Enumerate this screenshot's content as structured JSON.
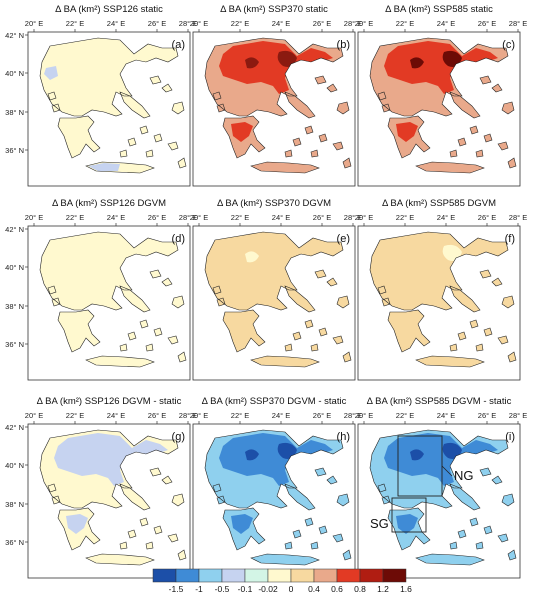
{
  "lon_ticks": [
    "20° E",
    "22° E",
    "24° E",
    "26° E",
    "28° E"
  ],
  "lat_ticks": [
    "42° N",
    "40° N",
    "38° N",
    "36° N"
  ],
  "panels": [
    {
      "title": "Δ BA (km²) SSP126 static",
      "label": "(a)",
      "base": "#fff9cf",
      "blobs": [
        {
          "c": "#c6d3f0",
          "shape": "nwbit"
        },
        {
          "c": "#c6d3f0",
          "shape": "crete"
        }
      ]
    },
    {
      "title": "Δ BA (km²) SSP370 static",
      "label": "(b)",
      "base": "#e9a98b",
      "blobs": [
        {
          "c": "#e23a24",
          "shape": "north"
        },
        {
          "c": "#8b1a10",
          "shape": "spot1"
        },
        {
          "c": "#8b1a10",
          "shape": "spot2"
        },
        {
          "c": "#e23a24",
          "shape": "pelo"
        }
      ]
    },
    {
      "title": "Δ BA (km²) SSP585 static",
      "label": "(c)",
      "base": "#e9a98b",
      "blobs": [
        {
          "c": "#e23a24",
          "shape": "north"
        },
        {
          "c": "#6d0b06",
          "shape": "spot1"
        },
        {
          "c": "#6d0b06",
          "shape": "spot2"
        },
        {
          "c": "#e23a24",
          "shape": "pelo"
        }
      ]
    },
    {
      "title": "Δ BA (km²) SSP126 DGVM",
      "label": "(d)",
      "base": "#fff9cf",
      "blobs": []
    },
    {
      "title": "Δ BA (km²) SSP370 DGVM",
      "label": "(e)",
      "base": "#f7d9a0",
      "blobs": [
        {
          "c": "#fff9cf",
          "shape": "spot1"
        }
      ]
    },
    {
      "title": "Δ BA (km²) SSP585 DGVM",
      "label": "(f)",
      "base": "#f7d9a0",
      "blobs": [
        {
          "c": "#fff9cf",
          "shape": "spot2"
        }
      ]
    },
    {
      "title": "Δ BA (km²) SSP126  DGVM - static",
      "label": "(g)",
      "base": "#fff9cf",
      "blobs": [
        {
          "c": "#c6d3f0",
          "shape": "north"
        },
        {
          "c": "#c6d3f0",
          "shape": "pelo"
        }
      ]
    },
    {
      "title": "Δ BA (km²) SSP370  DGVM - static",
      "label": "(h)",
      "base": "#8fd0ee",
      "blobs": [
        {
          "c": "#3f8bd6",
          "shape": "north"
        },
        {
          "c": "#1c4fa8",
          "shape": "spot1"
        },
        {
          "c": "#1c4fa8",
          "shape": "spot2"
        },
        {
          "c": "#3f8bd6",
          "shape": "pelo"
        }
      ]
    },
    {
      "title": "Δ BA (km²) SSP585  DGVM - static",
      "label": "(i)",
      "base": "#8fd0ee",
      "blobs": [
        {
          "c": "#3f8bd6",
          "shape": "north"
        },
        {
          "c": "#1c4fa8",
          "shape": "spot1"
        },
        {
          "c": "#1c4fa8",
          "shape": "spot2"
        },
        {
          "c": "#3f8bd6",
          "shape": "pelo"
        }
      ],
      "regions": [
        "NG",
        "SG"
      ]
    }
  ],
  "colorbar": {
    "colors": [
      "#1c4fa8",
      "#3f8bd6",
      "#8fd0ee",
      "#c6d3f0",
      "#d3f5e6",
      "#fff9cf",
      "#f7d9a0",
      "#e9a98b",
      "#e23a24",
      "#b01d12",
      "#6d0b06"
    ],
    "labels": [
      "-1.5",
      "-1",
      "-0.5",
      "-0.1",
      "-0.02",
      "0",
      "0.4",
      "0.6",
      "0.8",
      "1.2",
      "1.6"
    ]
  }
}
